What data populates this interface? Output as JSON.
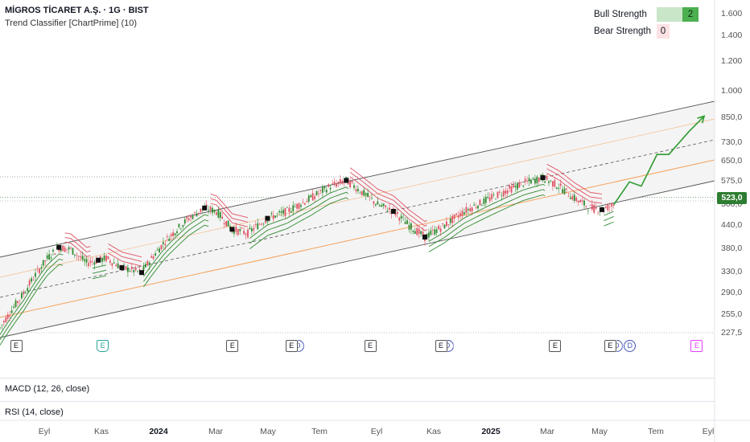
{
  "header": {
    "symbol_title": "MİGROS TİCARET A.Ş. · 1G · BIST",
    "indicator_label": "Trend Classifier [ChartPrime] (10)"
  },
  "strength_table": {
    "bull_label": "Bull Strength",
    "bull_value": "2",
    "bear_label": "Bear Strength",
    "bear_value": "0"
  },
  "panes": {
    "macd_label": "MACD (12, 26, close)",
    "rsi_label": "RSI (14, close)"
  },
  "colors": {
    "bull": "#2e8b2e",
    "bear": "#e05262",
    "channel": "#555555",
    "orange": "#f5a25d",
    "last_price_bg": "#2e7d32"
  },
  "chart_data": {
    "type": "candlestick",
    "y_scale": "log",
    "ylim": [
      210,
      1700
    ],
    "y_ticks": [
      "1.600",
      "1.400",
      "1.200",
      "1.000",
      "850,0",
      "730,0",
      "650,0",
      "575,0",
      "500,0",
      "440,0",
      "380,0",
      "330,0",
      "290,0",
      "255,0",
      "227,5"
    ],
    "y_tick_values": [
      1600,
      1400,
      1200,
      1000,
      850,
      730,
      650,
      575,
      500,
      440,
      380,
      330,
      290,
      255,
      227.5
    ],
    "last_price": "523,0",
    "x_ticks": [
      "Eyl",
      "Kas",
      "2024",
      "Mar",
      "May",
      "Tem",
      "Eyl",
      "Kas",
      "2025",
      "Mar",
      "May",
      "Tem",
      "Eyl"
    ],
    "x_ticks_bold": [
      "2024",
      "2025"
    ],
    "price_path": [
      {
        "t": 0,
        "p": 235
      },
      {
        "t": 12,
        "p": 290
      },
      {
        "t": 24,
        "p": 360
      },
      {
        "t": 30,
        "p": 385
      },
      {
        "t": 36,
        "p": 380
      },
      {
        "t": 44,
        "p": 350
      },
      {
        "t": 54,
        "p": 360
      },
      {
        "t": 62,
        "p": 340
      },
      {
        "t": 72,
        "p": 330
      },
      {
        "t": 84,
        "p": 400
      },
      {
        "t": 96,
        "p": 460
      },
      {
        "t": 104,
        "p": 490
      },
      {
        "t": 110,
        "p": 480
      },
      {
        "t": 118,
        "p": 430
      },
      {
        "t": 126,
        "p": 420
      },
      {
        "t": 136,
        "p": 460
      },
      {
        "t": 146,
        "p": 480
      },
      {
        "t": 158,
        "p": 520
      },
      {
        "t": 168,
        "p": 560
      },
      {
        "t": 176,
        "p": 580
      },
      {
        "t": 184,
        "p": 540
      },
      {
        "t": 192,
        "p": 500
      },
      {
        "t": 200,
        "p": 480
      },
      {
        "t": 208,
        "p": 440
      },
      {
        "t": 216,
        "p": 410
      },
      {
        "t": 226,
        "p": 440
      },
      {
        "t": 236,
        "p": 480
      },
      {
        "t": 246,
        "p": 510
      },
      {
        "t": 256,
        "p": 540
      },
      {
        "t": 266,
        "p": 570
      },
      {
        "t": 276,
        "p": 590
      },
      {
        "t": 284,
        "p": 560
      },
      {
        "t": 292,
        "p": 520
      },
      {
        "t": 300,
        "p": 490
      },
      {
        "t": 306,
        "p": 485
      },
      {
        "t": 312,
        "p": 500
      }
    ],
    "projection_path": [
      {
        "t": 312,
        "p": 500
      },
      {
        "t": 320,
        "p": 575
      },
      {
        "t": 326,
        "p": 560
      },
      {
        "t": 334,
        "p": 680
      },
      {
        "t": 340,
        "p": 680
      },
      {
        "t": 350,
        "p": 780
      },
      {
        "t": 358,
        "p": 860
      }
    ],
    "events": [
      {
        "t": 8,
        "kind": "E"
      },
      {
        "t": 52,
        "kind": "E",
        "style": "teal"
      },
      {
        "t": 118,
        "kind": "E"
      },
      {
        "t": 148,
        "kind": "E",
        "div": true
      },
      {
        "t": 188,
        "kind": "E"
      },
      {
        "t": 224,
        "kind": "E",
        "div": true
      },
      {
        "t": 282,
        "kind": "E"
      },
      {
        "t": 310,
        "kind": "E",
        "div": true
      },
      {
        "t": 320,
        "kind": "D"
      },
      {
        "t": 354,
        "kind": "E",
        "style": "magenta"
      }
    ]
  }
}
